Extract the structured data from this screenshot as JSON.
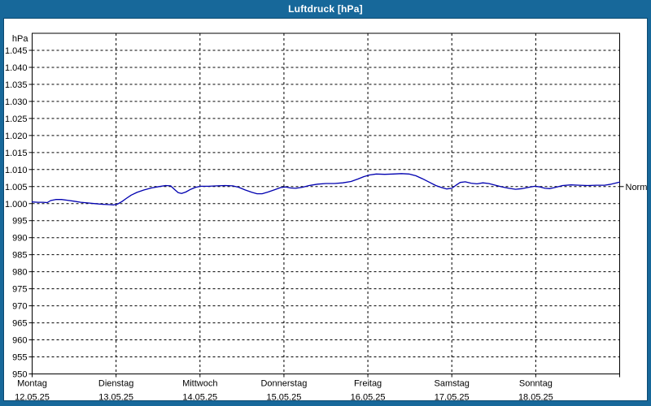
{
  "window": {
    "title": "Luftdruck [hPa]"
  },
  "colors": {
    "titlebar_blue": "#17689a",
    "frame_border": "#0c4a71",
    "plot_border": "#000000",
    "grid": "#000000",
    "text": "#000000",
    "curve_blue": "#0000b0",
    "background": "#ffffff"
  },
  "chart_data": {
    "type": "line",
    "title": "Luftdruck [hPa]",
    "unit_label": "hPa",
    "ylim": [
      950,
      1050
    ],
    "ytick_step": 5,
    "ytick_label_min": 950,
    "ytick_label_max": 1045,
    "grid": true,
    "legend_position": "none",
    "x_axis_days": [
      {
        "name": "Montag",
        "date": "12.05.25"
      },
      {
        "name": "Dienstag",
        "date": "13.05.25"
      },
      {
        "name": "Mittwoch",
        "date": "14.05.25"
      },
      {
        "name": "Donnerstag",
        "date": "15.05.25"
      },
      {
        "name": "Freitag",
        "date": "16.05.25"
      },
      {
        "name": "Samstag",
        "date": "17.05.25"
      },
      {
        "name": "Sonntag",
        "date": "18.05.25"
      }
    ],
    "reference_marker": {
      "label": "Normal",
      "value": 1005
    },
    "series": [
      {
        "name": "Luftdruck",
        "color": "#0000b0",
        "x_unit": "days_from_monday_start",
        "points": [
          [
            0.0,
            1000.5
          ],
          [
            0.07,
            1000.4
          ],
          [
            0.13,
            1000.4
          ],
          [
            0.18,
            1000.3
          ],
          [
            0.22,
            1000.9
          ],
          [
            0.28,
            1001.2
          ],
          [
            0.35,
            1001.2
          ],
          [
            0.42,
            1001.0
          ],
          [
            0.5,
            1000.7
          ],
          [
            0.58,
            1000.4
          ],
          [
            0.66,
            1000.2
          ],
          [
            0.75,
            1000.0
          ],
          [
            0.84,
            999.8
          ],
          [
            0.92,
            999.7
          ],
          [
            0.97,
            999.6
          ],
          [
            1.02,
            999.9
          ],
          [
            1.07,
            1000.6
          ],
          [
            1.12,
            1001.5
          ],
          [
            1.18,
            1002.5
          ],
          [
            1.25,
            1003.3
          ],
          [
            1.33,
            1004.0
          ],
          [
            1.42,
            1004.6
          ],
          [
            1.51,
            1005.0
          ],
          [
            1.59,
            1005.3
          ],
          [
            1.65,
            1005.2
          ],
          [
            1.7,
            1004.1
          ],
          [
            1.74,
            1003.2
          ],
          [
            1.78,
            1003.0
          ],
          [
            1.83,
            1003.4
          ],
          [
            1.89,
            1004.2
          ],
          [
            1.95,
            1004.8
          ],
          [
            2.01,
            1005.1
          ],
          [
            2.1,
            1005.1
          ],
          [
            2.2,
            1005.2
          ],
          [
            2.3,
            1005.3
          ],
          [
            2.39,
            1005.2
          ],
          [
            2.46,
            1004.8
          ],
          [
            2.54,
            1004.0
          ],
          [
            2.62,
            1003.3
          ],
          [
            2.68,
            1002.9
          ],
          [
            2.74,
            1002.9
          ],
          [
            2.81,
            1003.4
          ],
          [
            2.89,
            1004.1
          ],
          [
            2.96,
            1004.7
          ],
          [
            3.02,
            1004.9
          ],
          [
            3.08,
            1004.6
          ],
          [
            3.14,
            1004.5
          ],
          [
            3.22,
            1004.8
          ],
          [
            3.3,
            1005.3
          ],
          [
            3.4,
            1005.7
          ],
          [
            3.5,
            1005.9
          ],
          [
            3.6,
            1005.9
          ],
          [
            3.7,
            1006.1
          ],
          [
            3.8,
            1006.5
          ],
          [
            3.88,
            1007.2
          ],
          [
            3.95,
            1007.9
          ],
          [
            4.02,
            1008.4
          ],
          [
            4.1,
            1008.7
          ],
          [
            4.2,
            1008.6
          ],
          [
            4.3,
            1008.7
          ],
          [
            4.4,
            1008.8
          ],
          [
            4.49,
            1008.7
          ],
          [
            4.57,
            1008.2
          ],
          [
            4.65,
            1007.3
          ],
          [
            4.73,
            1006.3
          ],
          [
            4.81,
            1005.3
          ],
          [
            4.88,
            1004.7
          ],
          [
            4.94,
            1004.3
          ],
          [
            5.0,
            1004.5
          ],
          [
            5.05,
            1005.4
          ],
          [
            5.1,
            1006.2
          ],
          [
            5.16,
            1006.4
          ],
          [
            5.23,
            1006.0
          ],
          [
            5.3,
            1005.8
          ],
          [
            5.37,
            1006.1
          ],
          [
            5.44,
            1005.9
          ],
          [
            5.52,
            1005.4
          ],
          [
            5.6,
            1004.9
          ],
          [
            5.68,
            1004.5
          ],
          [
            5.76,
            1004.2
          ],
          [
            5.84,
            1004.4
          ],
          [
            5.92,
            1004.8
          ],
          [
            5.99,
            1005.1
          ],
          [
            6.05,
            1004.9
          ],
          [
            6.11,
            1004.5
          ],
          [
            6.17,
            1004.4
          ],
          [
            6.24,
            1004.8
          ],
          [
            6.32,
            1005.3
          ],
          [
            6.42,
            1005.5
          ],
          [
            6.52,
            1005.4
          ],
          [
            6.62,
            1005.3
          ],
          [
            6.72,
            1005.4
          ],
          [
            6.82,
            1005.4
          ],
          [
            6.9,
            1005.7
          ],
          [
            6.96,
            1006.1
          ],
          [
            7.0,
            1006.3
          ]
        ]
      }
    ]
  }
}
